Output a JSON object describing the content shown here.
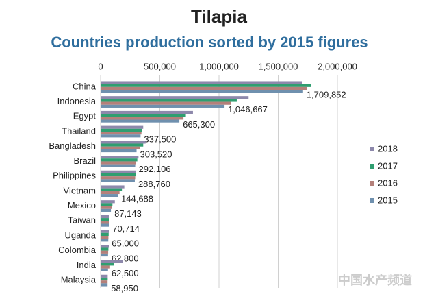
{
  "chart_data": {
    "type": "hbar",
    "title": "Tilapia",
    "subtitle": "Countries production sorted by 2015 figures",
    "categories": [
      "China",
      "Indonesia",
      "Egypt",
      "Thailand",
      "Bangladesh",
      "Brazil",
      "Philippines",
      "Vietnam",
      "Mexico",
      "Taiwan",
      "Uganda",
      "Colombia",
      "India",
      "Malaysia"
    ],
    "series": [
      {
        "name": "2018",
        "color": "#8d88ab",
        "values": [
          1700000,
          1250000,
          780000,
          360000,
          380000,
          320000,
          300000,
          200000,
          120000,
          75000,
          70000,
          70000,
          190000,
          60000
        ]
      },
      {
        "name": "2017",
        "color": "#2f9e70",
        "values": [
          1780000,
          1150000,
          720000,
          350000,
          360000,
          310000,
          295000,
          180000,
          100000,
          72000,
          68000,
          66000,
          110000,
          60000
        ]
      },
      {
        "name": "2016",
        "color": "#b4807a",
        "values": [
          1740000,
          1100000,
          700000,
          345000,
          330000,
          300000,
          292000,
          160000,
          95000,
          71000,
          66000,
          64000,
          80000,
          59000
        ]
      },
      {
        "name": "2015",
        "color": "#6f90ae",
        "values": [
          1709852,
          1046667,
          665300,
          337500,
          303520,
          292106,
          288760,
          144688,
          87143,
          70714,
          65000,
          62800,
          62500,
          58950
        ],
        "value_labels": [
          "1,709,852",
          "1,046,667",
          "665,300",
          "337,500",
          "303,520",
          "292,106",
          "288,760",
          "144,688",
          "87,143",
          "70,714",
          "65,000",
          "62,800",
          "62,500",
          "58,950"
        ]
      }
    ],
    "xlim": [
      0,
      2000000
    ],
    "xticks": [
      0,
      {
        "value": 500000,
        "label": "500,000"
      },
      {
        "value": 1000000,
        "label": "1,000,000"
      },
      {
        "value": 1500000,
        "label": "1,500,000"
      },
      {
        "value": 2000000,
        "label": "2,000,000"
      }
    ],
    "grid": true,
    "legend": "right",
    "watermark": "中国水产频道"
  }
}
